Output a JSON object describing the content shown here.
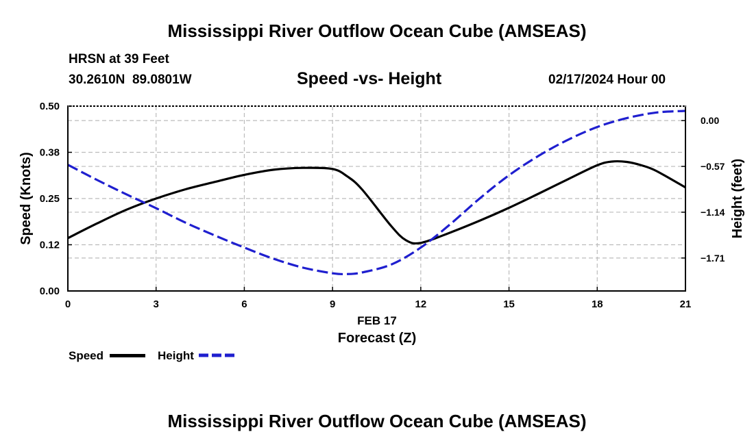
{
  "page": {
    "title_top": "Mississippi River Outflow Ocean Cube (AMSEAS)",
    "title_bottom": "Mississippi River Outflow Ocean Cube (AMSEAS)",
    "station": "HRSN at 39 Feet",
    "coords": "30.2610N  89.0801W",
    "chart_title": "Speed -vs- Height",
    "datetime": "02/17/2024 Hour 00"
  },
  "legend": {
    "speed_label": "Speed",
    "height_label": "Height"
  },
  "colors": {
    "speed": "#000000",
    "height": "#1f1fcf",
    "grid": "#bbbbbb"
  },
  "chart_data": {
    "type": "line",
    "title": "Speed -vs- Height",
    "xlabel": "Forecast (Z)",
    "xlabel_date": "FEB 17",
    "ylabel_left": "Speed (Knots)",
    "ylabel_right": "Height (feet)",
    "xlim": [
      0,
      21
    ],
    "ylim_left": [
      0,
      0.5
    ],
    "ylim_right": [
      -2.12,
      0.18
    ],
    "x_ticks": [
      0,
      3,
      6,
      9,
      12,
      15,
      18,
      21
    ],
    "x_tick_labels": [
      "0",
      "3",
      "6",
      "9",
      "12",
      "15",
      "18",
      "21"
    ],
    "y_left_ticks": [
      0,
      0.125,
      0.25,
      0.375,
      0.5
    ],
    "y_left_tick_labels": [
      "0.00",
      "0.12",
      "0.25",
      "0.38",
      "0.50"
    ],
    "y_right_ticks": [
      0.0,
      -0.57,
      -1.14,
      -1.71
    ],
    "y_right_tick_labels": [
      "0.00",
      "−0.57",
      "−1.14",
      "−1.71"
    ],
    "series": [
      {
        "name": "Speed",
        "axis": "left",
        "style": "solid",
        "x": [
          0,
          1,
          2,
          3,
          4,
          5,
          6,
          7,
          8,
          9,
          9.5,
          10,
          11,
          11.5,
          12,
          13,
          14,
          15,
          16,
          17,
          18,
          18.5,
          19,
          19.5,
          20,
          21
        ],
        "y": [
          0.143,
          0.183,
          0.22,
          0.25,
          0.275,
          0.295,
          0.314,
          0.328,
          0.333,
          0.33,
          0.31,
          0.275,
          0.175,
          0.137,
          0.13,
          0.158,
          0.19,
          0.225,
          0.263,
          0.302,
          0.34,
          0.35,
          0.349,
          0.34,
          0.325,
          0.28
        ]
      },
      {
        "name": "Height",
        "axis": "right",
        "style": "dashed",
        "x": [
          0,
          1,
          2,
          3,
          4,
          5,
          6,
          7,
          8,
          9,
          9.5,
          10,
          11,
          12,
          13,
          14,
          15,
          16,
          17,
          18,
          19,
          20,
          21
        ],
        "y": [
          -0.55,
          -0.74,
          -0.92,
          -1.09,
          -1.27,
          -1.43,
          -1.58,
          -1.72,
          -1.83,
          -1.9,
          -1.91,
          -1.89,
          -1.79,
          -1.58,
          -1.29,
          -0.97,
          -0.68,
          -0.44,
          -0.24,
          -0.08,
          0.03,
          0.1,
          0.12
        ]
      }
    ]
  }
}
